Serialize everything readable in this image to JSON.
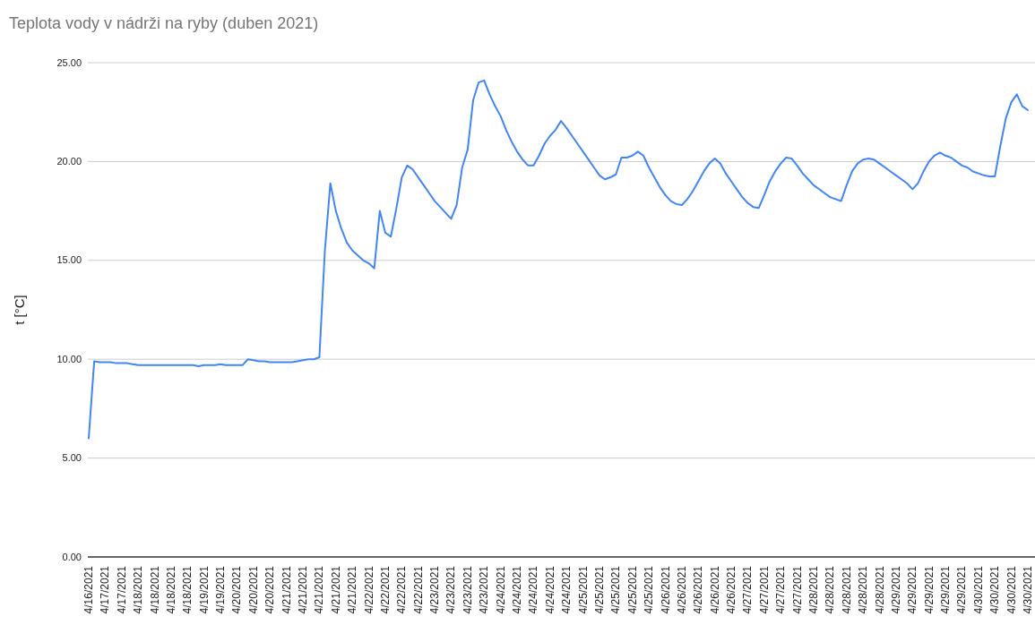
{
  "chart_data": {
    "type": "line",
    "title": "Teplota vody v nádrži na ryby (duben 2021)",
    "ylabel": "t [°C]",
    "categories": [
      "4/16/2021",
      null,
      null,
      "4/17/2021",
      null,
      null,
      "4/17/2021",
      null,
      null,
      "4/18/2021",
      null,
      null,
      "4/18/2021",
      null,
      null,
      "4/18/2021",
      null,
      null,
      "4/18/2021",
      null,
      null,
      "4/19/2021",
      null,
      null,
      "4/19/2021",
      null,
      null,
      "4/20/2021",
      null,
      null,
      "4/20/2021",
      null,
      null,
      "4/20/2021",
      null,
      null,
      "4/21/2021",
      null,
      null,
      "4/21/2021",
      null,
      null,
      "4/21/2021",
      null,
      null,
      "4/21/2021",
      null,
      null,
      "4/21/2021",
      null,
      null,
      "4/22/2021",
      null,
      null,
      "4/22/2021",
      null,
      null,
      "4/22/2021",
      null,
      null,
      "4/22/2021",
      null,
      null,
      "4/23/2021",
      null,
      null,
      "4/23/2021",
      null,
      null,
      "4/23/2021",
      null,
      null,
      "4/23/2021",
      null,
      null,
      "4/24/2021",
      null,
      null,
      "4/24/2021",
      null,
      null,
      "4/24/2021",
      null,
      null,
      "4/24/2021",
      null,
      null,
      "4/24/2021",
      null,
      null,
      "4/25/2021",
      null,
      null,
      "4/25/2021",
      null,
      null,
      "4/25/2021",
      null,
      null,
      "4/25/2021",
      null,
      null,
      "4/25/2021",
      null,
      null,
      "4/26/2021",
      null,
      null,
      "4/26/2021",
      null,
      null,
      "4/26/2021",
      null,
      null,
      "4/26/2021",
      null,
      null,
      "4/26/2021",
      null,
      null,
      "4/27/2021",
      null,
      null,
      "4/27/2021",
      null,
      null,
      "4/27/2021",
      null,
      null,
      "4/27/2021",
      null,
      null,
      "4/28/2021",
      null,
      null,
      "4/28/2021",
      null,
      null,
      "4/28/2021",
      null,
      null,
      "4/28/2021",
      null,
      null,
      "4/28/2021",
      null,
      null,
      "4/29/2021",
      null,
      null,
      "4/29/2021",
      null,
      null,
      "4/29/2021",
      null,
      null,
      "4/29/2021",
      null,
      null,
      "4/29/2021",
      null,
      null,
      "4/30/2021",
      null,
      null,
      "4/30/2021",
      null,
      null,
      "4/30/2021",
      null,
      null,
      "4/30/2021"
    ],
    "series": [
      {
        "color": "#4285f4",
        "values": [
          6.0,
          9.9,
          9.85,
          9.85,
          9.85,
          9.8,
          9.8,
          9.8,
          9.75,
          9.7,
          9.7,
          9.7,
          9.7,
          9.7,
          9.7,
          9.7,
          9.7,
          9.7,
          9.7,
          9.7,
          9.65,
          9.7,
          9.7,
          9.7,
          9.75,
          9.7,
          9.7,
          9.7,
          9.7,
          10.0,
          9.95,
          9.9,
          9.9,
          9.85,
          9.85,
          9.85,
          9.85,
          9.85,
          9.9,
          9.95,
          10.0,
          10.0,
          10.1,
          15.5,
          18.9,
          17.5,
          16.6,
          15.9,
          15.5,
          15.25,
          15.0,
          14.85,
          14.6,
          17.5,
          16.4,
          16.2,
          17.6,
          19.2,
          19.8,
          19.6,
          19.2,
          18.8,
          18.4,
          18.0,
          17.7,
          17.4,
          17.1,
          17.8,
          19.7,
          20.6,
          23.1,
          24.0,
          24.1,
          23.4,
          22.8,
          22.3,
          21.6,
          21.0,
          20.5,
          20.1,
          19.8,
          19.8,
          20.3,
          20.9,
          21.3,
          21.6,
          22.05,
          21.7,
          21.3,
          20.9,
          20.5,
          20.1,
          19.7,
          19.3,
          19.1,
          19.2,
          19.35,
          20.2,
          20.2,
          20.3,
          20.5,
          20.3,
          19.7,
          19.2,
          18.7,
          18.3,
          18.0,
          17.85,
          17.8,
          18.1,
          18.5,
          19.0,
          19.5,
          19.9,
          20.15,
          19.9,
          19.4,
          19.0,
          18.6,
          18.2,
          17.9,
          17.7,
          17.65,
          18.3,
          19.0,
          19.5,
          19.9,
          20.2,
          20.15,
          19.8,
          19.4,
          19.1,
          18.8,
          18.6,
          18.4,
          18.2,
          18.1,
          18.0,
          18.8,
          19.5,
          19.9,
          20.1,
          20.15,
          20.1,
          19.9,
          19.7,
          19.5,
          19.3,
          19.1,
          18.9,
          18.6,
          18.9,
          19.5,
          20.0,
          20.3,
          20.45,
          20.3,
          20.2,
          20.0,
          19.8,
          19.7,
          19.5,
          19.4,
          19.3,
          19.25,
          19.25,
          20.8,
          22.2,
          23.0,
          23.4,
          22.8,
          22.6
        ]
      }
    ],
    "ylim": [
      0,
      25
    ],
    "yticks": [
      {
        "value": 0,
        "label": "0.00"
      },
      {
        "value": 5,
        "label": "5.00"
      },
      {
        "value": 10,
        "label": "10.00"
      },
      {
        "value": 15,
        "label": "15.00"
      },
      {
        "value": 20,
        "label": "20.00"
      },
      {
        "value": 25,
        "label": "25.00"
      }
    ],
    "grid": "y"
  }
}
